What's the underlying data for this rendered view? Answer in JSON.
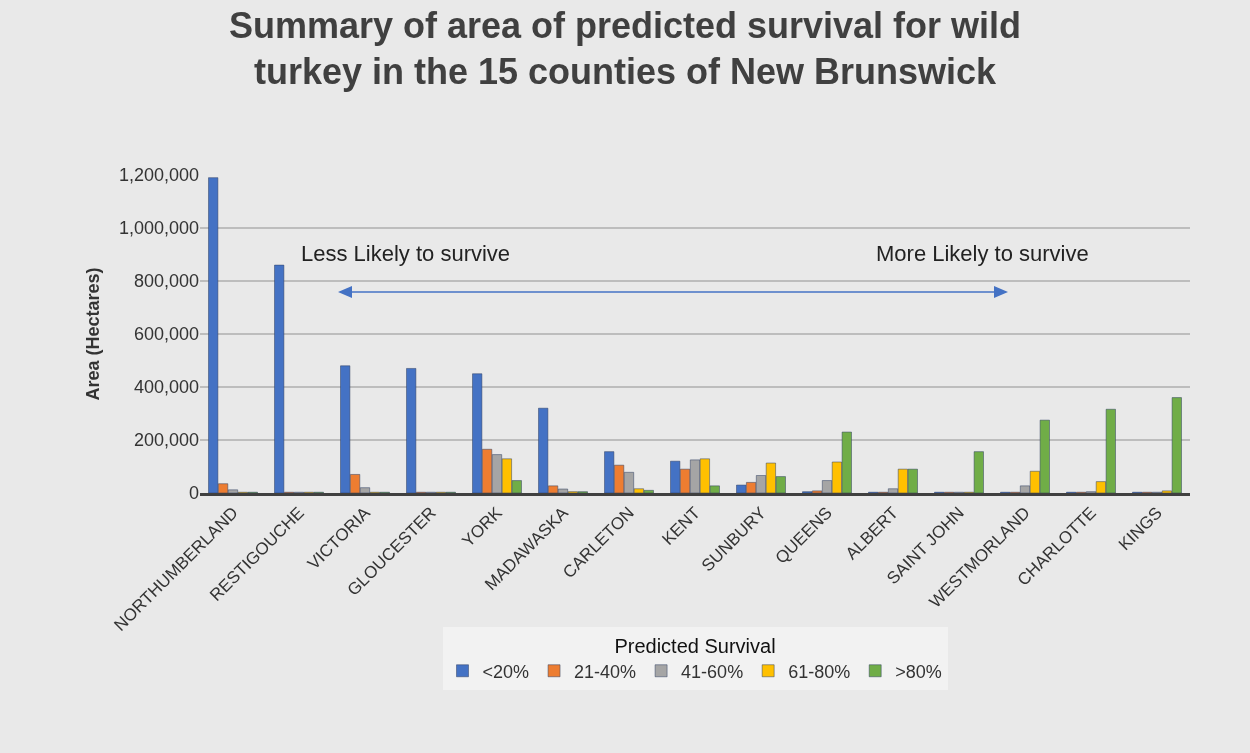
{
  "chart_data": {
    "type": "bar",
    "title": "Summary of area of predicted survival for wild\nturkey in the 15 counties of New Brunswick",
    "ylabel": "Area (Hectares)",
    "legend_title": "Predicted Survival",
    "annotations": [
      "Less Likely to survive",
      "More Likely to survive"
    ],
    "categories": [
      "NORTHUMBERLAND",
      "RESTIGOUCHE",
      "VICTORIA",
      "GLOUCESTER",
      "YORK",
      "MADAWASKA",
      "CARLETON",
      "KENT",
      "SUNBURY",
      "QUEENS",
      "ALBERT",
      "SAINT JOHN",
      "WESTMORLAND",
      "CHARLOTTE",
      "KINGS"
    ],
    "series": [
      {
        "name": "<20%",
        "color": "#4472c4",
        "values": [
          1190000,
          860000,
          480000,
          470000,
          450000,
          320000,
          156000,
          120000,
          30000,
          5000,
          3000,
          3000,
          3000,
          3000,
          3000
        ]
      },
      {
        "name": "21-40%",
        "color": "#ed7d31",
        "values": [
          35000,
          3000,
          70000,
          3000,
          165000,
          27000,
          105000,
          90000,
          40000,
          8000,
          3000,
          3000,
          3000,
          3000,
          3000
        ]
      },
      {
        "name": "41-60%",
        "color": "#a5a5a5",
        "values": [
          12000,
          3000,
          20000,
          3000,
          145000,
          15000,
          78000,
          125000,
          66000,
          47000,
          16000,
          3000,
          27000,
          5000,
          3000
        ]
      },
      {
        "name": "61-80%",
        "color": "#ffc000",
        "values": [
          3000,
          3000,
          3000,
          3000,
          129000,
          5000,
          16000,
          129000,
          113000,
          117000,
          90000,
          3000,
          82000,
          43000,
          8000
        ]
      },
      {
        "name": ">80%",
        "color": "#70ad47",
        "values": [
          3000,
          3000,
          3000,
          3000,
          47000,
          5000,
          10000,
          27000,
          62000,
          230000,
          90000,
          156000,
          275000,
          316000,
          360000
        ]
      }
    ],
    "ylim": [
      0,
      1200000
    ],
    "yticks": [
      {
        "value": 0,
        "label": "0"
      },
      {
        "value": 200000,
        "label": "200,000"
      },
      {
        "value": 400000,
        "label": "400,000"
      },
      {
        "value": 600000,
        "label": "600,000"
      },
      {
        "value": 800000,
        "label": "800,000"
      },
      {
        "value": 1000000,
        "label": "1,000,000"
      },
      {
        "value": 1200000,
        "label": "1,200,000"
      }
    ],
    "grid": "y",
    "legend": "bottom"
  }
}
